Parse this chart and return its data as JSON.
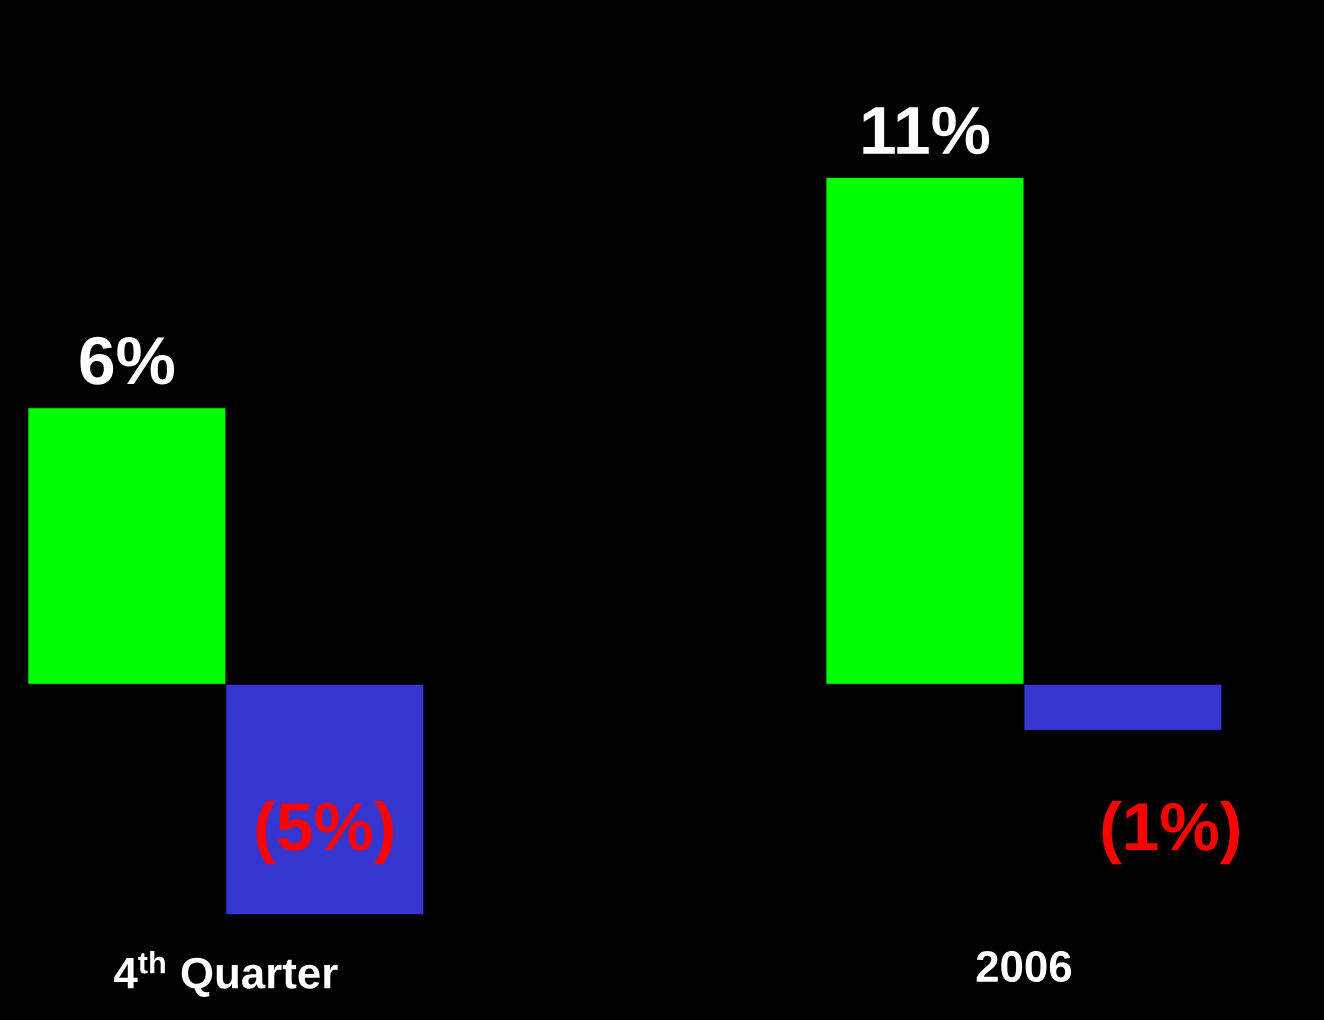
{
  "chart_data": {
    "type": "bar",
    "categories": [
      "4$^{th}$ Quarter",
      "2006"
    ],
    "series": [
      {
        "color": "#00ff00",
        "values": [
          6,
          11
        ],
        "value_labels": [
          "6%",
          "11%"
        ]
      },
      {
        "color": "#3535d0",
        "values": [
          -5,
          -1
        ],
        "value_labels": [
          "(5%)",
          "(1%)"
        ]
      }
    ]
  }
}
